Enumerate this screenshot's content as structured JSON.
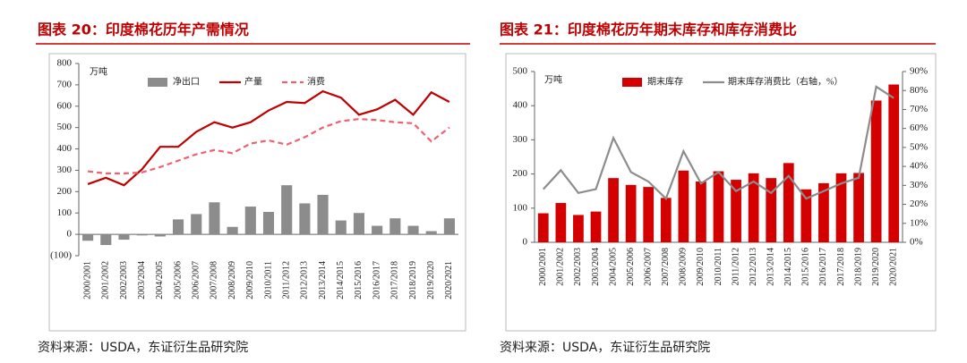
{
  "chart_data": [
    {
      "type": "combo",
      "title": "图表 20：印度棉花历年产需情况",
      "unit": "万吨",
      "source": "资料来源：USDA，东证衍生品研究院",
      "categories": [
        "2000/2001",
        "2001/2002",
        "2002/2003",
        "2003/2004",
        "2004/2005",
        "2005/2006",
        "2006/2007",
        "2007/2008",
        "2008/2009",
        "2009/2010",
        "2010/2011",
        "2011/2012",
        "2012/2013",
        "2013/2014",
        "2014/2015",
        "2015/2016",
        "2016/2017",
        "2017/2018",
        "2018/2019",
        "2019/2020",
        "2020/2021"
      ],
      "series": [
        {
          "name": "净出口",
          "type": "bar",
          "color": "#8c8c8c",
          "values": [
            -30,
            -50,
            -25,
            -5,
            -10,
            70,
            95,
            150,
            35,
            130,
            105,
            230,
            145,
            185,
            65,
            100,
            40,
            75,
            40,
            15,
            75
          ]
        },
        {
          "name": "产量",
          "type": "line",
          "color": "#c00000",
          "values": [
            235,
            265,
            230,
            305,
            410,
            410,
            480,
            525,
            500,
            525,
            580,
            620,
            615,
            670,
            640,
            560,
            585,
            630,
            560,
            665,
            620
          ]
        },
        {
          "name": "消费",
          "type": "line",
          "color": "#f06070",
          "dash": true,
          "values": [
            295,
            285,
            285,
            290,
            315,
            345,
            375,
            395,
            380,
            425,
            440,
            420,
            455,
            500,
            530,
            540,
            535,
            525,
            520,
            435,
            500
          ]
        }
      ],
      "ylim": [
        -100,
        800
      ],
      "yticks": [
        {
          "value": -100,
          "label": "(100)"
        },
        0,
        100,
        200,
        300,
        400,
        500,
        600,
        700,
        800
      ],
      "legend": "top"
    },
    {
      "type": "combo",
      "title": "图表 21：印度棉花历年期末库存和库存消费比",
      "unit": "万吨",
      "source": "资料来源：USDA，东证衍生品研究院",
      "categories": [
        "2000/2001",
        "2001/2002",
        "2002/2003",
        "2003/2004",
        "2004/2005",
        "2005/2006",
        "2006/2007",
        "2007/2008",
        "2008/2009",
        "2009/2010",
        "2010/2011",
        "2011/2012",
        "2012/2013",
        "2013/2014",
        "2014/2015",
        "2015/2016",
        "2016/2017",
        "2017/2018",
        "2018/2019",
        "2019/2020",
        "2020/2021"
      ],
      "series": [
        {
          "name": "期末库存",
          "type": "bar",
          "color": "#d40000",
          "values": [
            85,
            115,
            80,
            90,
            188,
            168,
            162,
            130,
            210,
            178,
            208,
            183,
            202,
            188,
            232,
            155,
            173,
            202,
            203,
            415,
            462
          ]
        },
        {
          "name": "期末库存消费比（右轴，%）",
          "type": "line",
          "color": "#8c8c8c",
          "axis": "y2",
          "values": [
            28,
            38,
            26,
            28,
            55,
            37,
            32,
            23,
            48,
            31,
            37,
            27,
            32,
            26,
            35,
            23,
            27,
            31,
            34,
            82,
            76
          ]
        }
      ],
      "ylim": [
        0,
        500
      ],
      "yticks": [
        0,
        100,
        200,
        300,
        400,
        500
      ],
      "y2lim": [
        0,
        90
      ],
      "y2ticks": [
        {
          "value": 0,
          "label": "0%"
        },
        {
          "value": 10,
          "label": "10%"
        },
        {
          "value": 20,
          "label": "20%"
        },
        {
          "value": 30,
          "label": "30%"
        },
        {
          "value": 40,
          "label": "40%"
        },
        {
          "value": 50,
          "label": "50%"
        },
        {
          "value": 60,
          "label": "60%"
        },
        {
          "value": 70,
          "label": "70%"
        },
        {
          "value": 80,
          "label": "80%"
        },
        {
          "value": 90,
          "label": "90%"
        }
      ],
      "legend": "top"
    }
  ]
}
